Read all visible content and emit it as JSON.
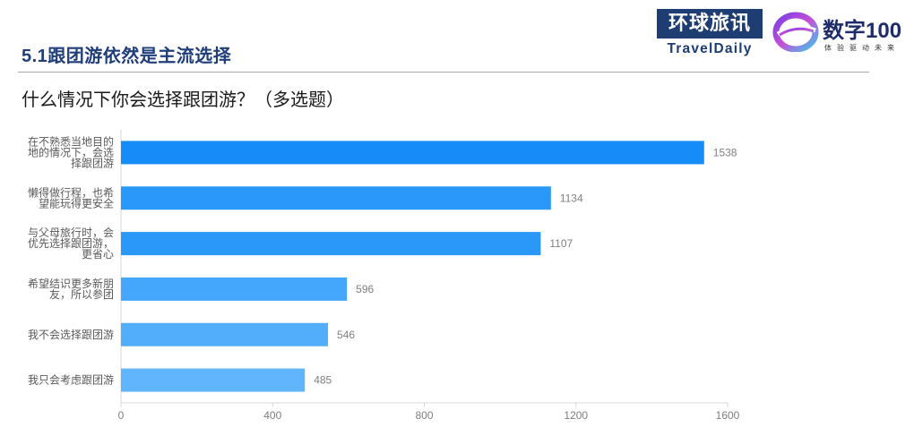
{
  "header": {
    "section_title": "5.1跟团游依然是主流选择",
    "logo_traveldaily_cn": "环球旅讯",
    "logo_traveldaily_en": "TravelDaily",
    "logo_digital_cn": "数字100",
    "logo_digital_sub": "体验驱动未来"
  },
  "question": "什么情况下你会选择跟团游？（多选题）",
  "colors": {
    "bars": [
      "#158cf7",
      "#2a98f9",
      "#2a98f9",
      "#45a7fb",
      "#52adfb",
      "#60b5fc"
    ],
    "title": "#1f3e7a"
  },
  "chart_data": {
    "type": "bar",
    "orientation": "horizontal",
    "title": "",
    "xlabel": "",
    "ylabel": "",
    "categories": [
      [
        "在不熟悉当地目的",
        "地的情况下，会选",
        "择跟团游"
      ],
      [
        "懒得做行程，也希",
        "望能玩得更安全"
      ],
      [
        "与父母旅行时，会",
        "优先选择跟团游，",
        "更省心"
      ],
      [
        "希望结识更多新朋",
        "友，所以参团"
      ],
      [
        "我不会选择跟团游"
      ],
      [
        "我只会考虑跟团游"
      ]
    ],
    "values": [
      1538,
      1134,
      1107,
      596,
      546,
      485
    ],
    "xlim": [
      0,
      1600
    ],
    "xticks": [
      0,
      400,
      800,
      1200,
      1600
    ],
    "data_labels": true,
    "grid": false,
    "legend": false
  }
}
